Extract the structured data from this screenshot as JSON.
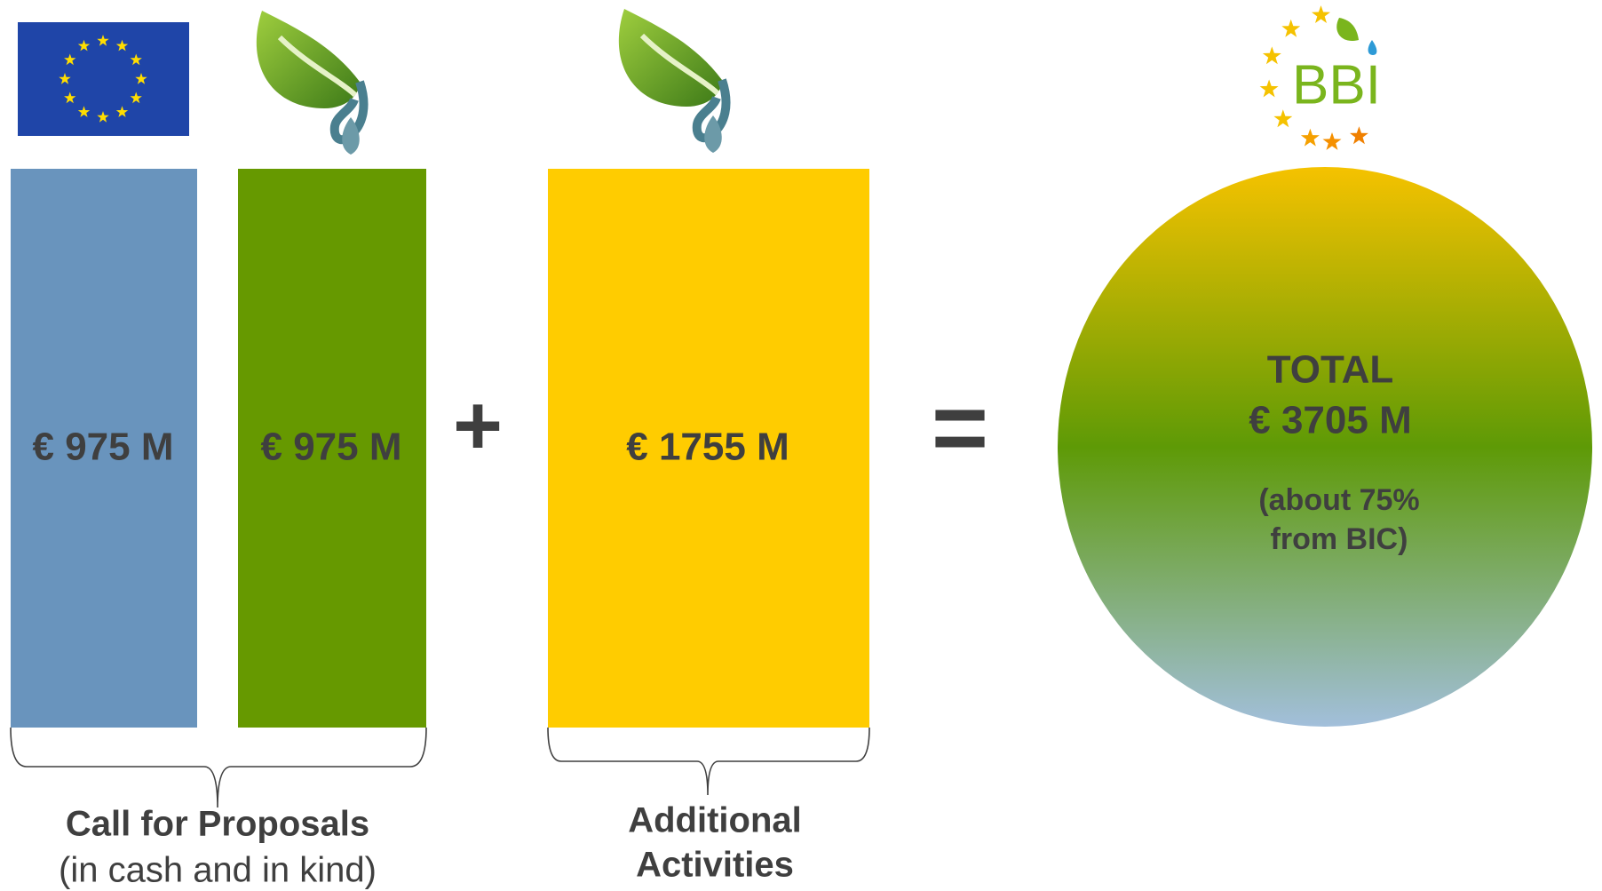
{
  "blocks": [
    {
      "label": "€ 975 M"
    },
    {
      "label": "€ 975 M"
    },
    {
      "label": "€ 1755 M"
    }
  ],
  "operators": {
    "plus": "+",
    "equals": "="
  },
  "total": {
    "title": "TOTAL",
    "amount": "€ 3705 M",
    "note_line1": "(about 75%",
    "note_line2": "from BIC)"
  },
  "logo": {
    "text": "BBI"
  },
  "groups": [
    {
      "title": "Call for Proposals",
      "subtitle": "(in cash and in kind)"
    },
    {
      "title_line1": "Additional",
      "title_line2": "Activities"
    }
  ]
}
